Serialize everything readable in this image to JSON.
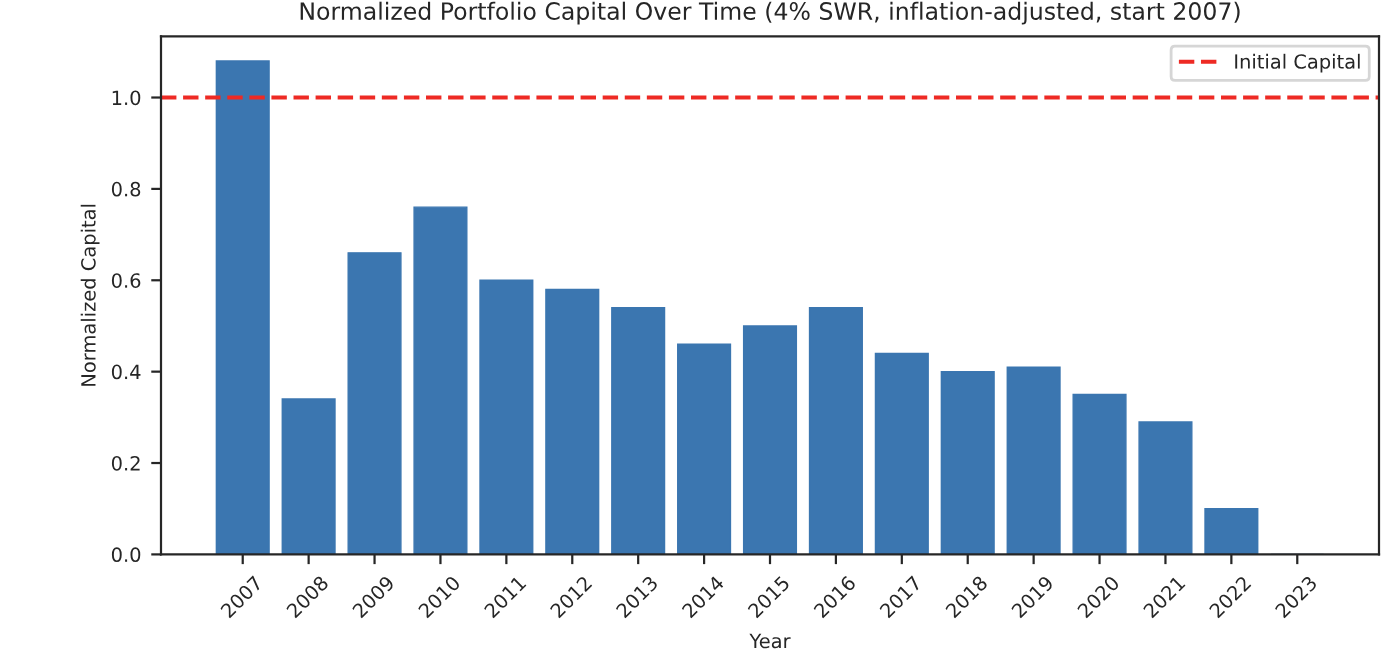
{
  "chart_data": {
    "type": "bar",
    "title": "Normalized Portfolio Capital Over Time (4% SWR, inflation-adjusted, start 2007)",
    "xlabel": "Year",
    "ylabel": "Normalized Capital",
    "categories": [
      "2007",
      "2008",
      "2009",
      "2010",
      "2011",
      "2012",
      "2013",
      "2014",
      "2015",
      "2016",
      "2017",
      "2018",
      "2019",
      "2020",
      "2021",
      "2022",
      "2023"
    ],
    "values": [
      1.08,
      0.34,
      0.66,
      0.76,
      0.6,
      0.58,
      0.54,
      0.46,
      0.5,
      0.54,
      0.44,
      0.4,
      0.41,
      0.35,
      0.29,
      0.1,
      0
    ],
    "color": "#3b76b0",
    "ylim": [
      0,
      1.134
    ],
    "yticks": [
      {
        "value": 0,
        "label": "0.0"
      },
      0.2,
      0.4,
      0.6,
      0.8,
      {
        "value": 1,
        "label": "1.0"
      }
    ],
    "ref_lines": [
      {
        "axis": "y",
        "value": 1.0,
        "label": "Initial Capital",
        "color": "#ee2a24",
        "line_style": "dashed"
      }
    ],
    "legend": "top right",
    "grid": false
  }
}
